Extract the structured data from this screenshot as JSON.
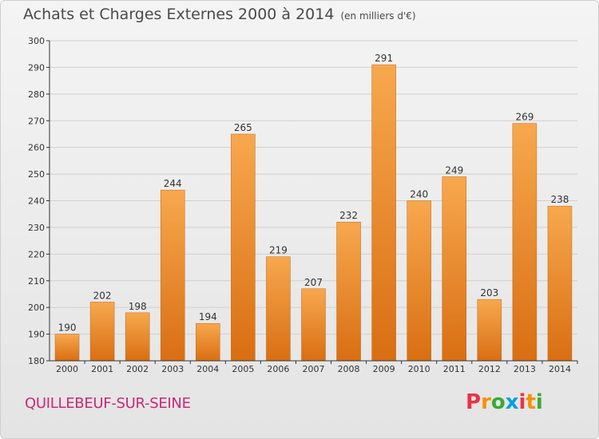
{
  "header": {
    "title": "Achats et Charges Externes 2000 à 2014",
    "unit": "(en milliers d'€)"
  },
  "footer": {
    "town": "QUILLEBEUF-SUR-SEINE",
    "logo_letters": [
      "P",
      "r",
      "o",
      "x",
      "i",
      "t",
      "i"
    ],
    "logo_colors": [
      "#e8334a",
      "#f39200",
      "#3aaa35",
      "#009fe3",
      "#e8334a",
      "#f39200",
      "#3aaa35"
    ]
  },
  "colors": {
    "bar_light": "#f7a84e",
    "bar_dark": "#d96e12",
    "grid": "#cfcfcf",
    "axis": "#333333"
  },
  "chart_data": {
    "type": "bar",
    "title": "Achats et Charges Externes 2000 à 2014",
    "subtitle": "(en milliers d'€)",
    "xlabel": "",
    "ylabel": "",
    "categories": [
      "2000",
      "2001",
      "2002",
      "2003",
      "2004",
      "2005",
      "2006",
      "2007",
      "2008",
      "2009",
      "2010",
      "2011",
      "2012",
      "2013",
      "2014"
    ],
    "values": [
      190,
      202,
      198,
      244,
      194,
      265,
      219,
      207,
      232,
      291,
      240,
      249,
      203,
      269,
      238
    ],
    "ylim": [
      180,
      300
    ],
    "yticks": [
      180,
      190,
      200,
      210,
      220,
      230,
      240,
      250,
      260,
      270,
      280,
      290,
      300
    ],
    "grid": true,
    "data_labels": true
  }
}
